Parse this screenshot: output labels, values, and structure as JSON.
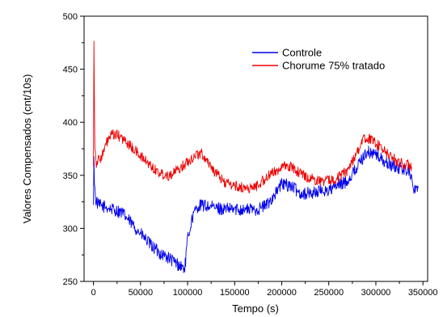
{
  "chart_data": {
    "type": "line",
    "title": "",
    "xlabel": "Tempo (s)",
    "ylabel": "Valores Compensados (cnt/10s)",
    "xlim": [
      -10000,
      355000
    ],
    "ylim": [
      250,
      500
    ],
    "xticks": [
      0,
      50000,
      100000,
      150000,
      200000,
      250000,
      300000,
      350000
    ],
    "xtick_labels": [
      "0",
      "50000",
      "100000",
      "150000",
      "200000",
      "250000",
      "300000",
      "350000"
    ],
    "yticks": [
      250,
      300,
      350,
      400,
      450,
      500
    ],
    "ytick_labels": [
      "250",
      "300",
      "350",
      "400",
      "450",
      "500"
    ],
    "grid": false,
    "legend_position": "top-right",
    "series": [
      {
        "name": "Controle",
        "color": "#0000ee",
        "noise": 6,
        "x": [
          0,
          500,
          1000,
          2000,
          5000,
          10000,
          20000,
          30000,
          40000,
          50000,
          60000,
          70000,
          80000,
          90000,
          97000,
          100000,
          105000,
          110000,
          115000,
          125000,
          140000,
          160000,
          175000,
          185000,
          195000,
          200000,
          210000,
          220000,
          230000,
          240000,
          250000,
          260000,
          270000,
          280000,
          290000,
          300000,
          310000,
          320000,
          330000,
          336000,
          338000,
          340000,
          345000
        ],
        "y": [
          318,
          372,
          345,
          328,
          322,
          321,
          318,
          315,
          305,
          295,
          285,
          277,
          272,
          266,
          262,
          290,
          310,
          320,
          322,
          320,
          318,
          318,
          318,
          323,
          335,
          342,
          340,
          333,
          333,
          335,
          336,
          340,
          345,
          358,
          372,
          370,
          362,
          358,
          356,
          355,
          345,
          338,
          338
        ]
      },
      {
        "name": "Chorume 75% tratado",
        "color": "#ee0000",
        "noise": 5,
        "x": [
          0,
          500,
          1000,
          1500,
          3000,
          6000,
          10000,
          15000,
          20000,
          25000,
          30000,
          40000,
          50000,
          60000,
          70000,
          80000,
          90000,
          100000,
          110000,
          115000,
          120000,
          130000,
          140000,
          150000,
          160000,
          170000,
          180000,
          190000,
          200000,
          210000,
          220000,
          230000,
          240000,
          250000,
          260000,
          270000,
          280000,
          288000,
          295000,
          300000,
          310000,
          320000,
          330000,
          335000,
          338000
        ],
        "y": [
          362,
          478,
          420,
          375,
          362,
          365,
          370,
          383,
          388,
          388,
          385,
          377,
          368,
          360,
          352,
          350,
          355,
          363,
          370,
          370,
          365,
          352,
          343,
          340,
          338,
          338,
          345,
          352,
          358,
          358,
          352,
          347,
          345,
          345,
          348,
          355,
          372,
          385,
          384,
          380,
          372,
          365,
          360,
          360,
          358
        ]
      }
    ]
  }
}
